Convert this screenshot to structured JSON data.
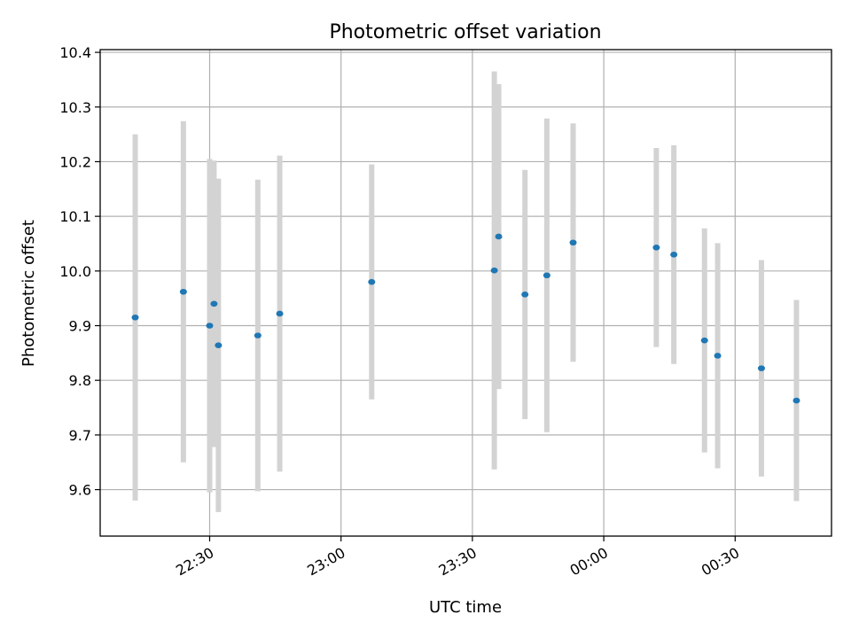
{
  "chart_data": {
    "type": "scatter",
    "title": "Photometric offset variation",
    "xlabel": "UTC time",
    "ylabel": "Photometric offset",
    "x_ticks": [
      "22:30",
      "23:00",
      "23:30",
      "00:00",
      "00:30"
    ],
    "y_ticks": [
      "9.6",
      "9.7",
      "9.8",
      "9.9",
      "10.0",
      "10.1",
      "10.2",
      "10.3",
      "10.4"
    ],
    "ylim": [
      9.515,
      10.405
    ],
    "xlim": [
      "22:05",
      "00:52"
    ],
    "grid": true,
    "point_color": "#1f77b4",
    "errorbar_color": "#d3d3d3",
    "points": [
      {
        "x": "22:13",
        "y": 9.915,
        "err": 0.335
      },
      {
        "x": "22:24",
        "y": 9.962,
        "err": 0.312
      },
      {
        "x": "22:30",
        "y": 9.9,
        "err": 0.305
      },
      {
        "x": "22:31",
        "y": 9.94,
        "err": 0.262
      },
      {
        "x": "22:32",
        "y": 9.864,
        "err": 0.305
      },
      {
        "x": "22:41",
        "y": 9.882,
        "err": 0.285
      },
      {
        "x": "22:46",
        "y": 9.922,
        "err": 0.289
      },
      {
        "x": "23:07",
        "y": 9.98,
        "err": 0.215
      },
      {
        "x": "23:35",
        "y": 10.001,
        "err": 0.364
      },
      {
        "x": "23:36",
        "y": 10.063,
        "err": 0.279
      },
      {
        "x": "23:42",
        "y": 9.957,
        "err": 0.228
      },
      {
        "x": "23:47",
        "y": 9.992,
        "err": 0.287
      },
      {
        "x": "23:53",
        "y": 10.052,
        "err": 0.218
      },
      {
        "x": "00:12",
        "y": 10.043,
        "err": 0.182
      },
      {
        "x": "00:16",
        "y": 10.03,
        "err": 0.2
      },
      {
        "x": "00:23",
        "y": 9.873,
        "err": 0.205
      },
      {
        "x": "00:26",
        "y": 9.845,
        "err": 0.206
      },
      {
        "x": "00:36",
        "y": 9.822,
        "err": 0.198
      },
      {
        "x": "00:44",
        "y": 9.763,
        "err": 0.184
      }
    ]
  }
}
